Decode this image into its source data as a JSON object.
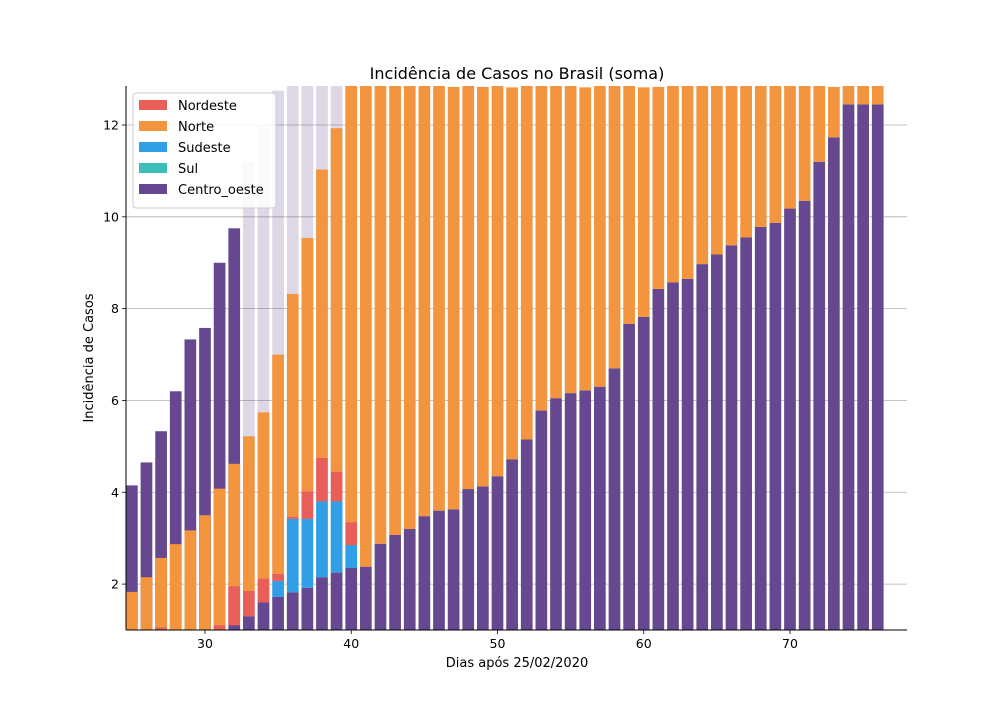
{
  "chart_data": {
    "type": "bar",
    "stacked": true,
    "title": "Incidência de Casos no Brasil (soma)",
    "xlabel": "Dias após 25/02/2020",
    "ylabel": "Incidência de Casos",
    "xlim": [
      24.6,
      78.0
    ],
    "ylim": [
      1.0,
      12.85
    ],
    "xticks": [
      30,
      40,
      50,
      60,
      70
    ],
    "yticks": [
      2,
      4,
      6,
      8,
      10,
      12
    ],
    "grid": "y",
    "legend_position": "upper-left",
    "x": [
      25,
      26,
      27,
      28,
      29,
      30,
      31,
      32,
      33,
      34,
      35,
      36,
      37,
      38,
      39,
      40,
      41,
      42,
      43,
      44,
      45,
      46,
      47,
      48,
      49,
      50,
      51,
      52,
      53,
      54,
      55,
      56,
      57,
      58,
      59,
      60,
      61,
      62,
      63,
      64,
      65,
      66,
      67,
      68,
      69,
      70,
      71,
      72,
      73,
      74,
      75,
      76
    ],
    "series": [
      {
        "name": "Centro_oeste",
        "color": "#65488f",
        "values": [
          0,
          0,
          0,
          0,
          0,
          0,
          0,
          1.1,
          1.3,
          1.6,
          1.72,
          1.82,
          1.92,
          2.15,
          2.25,
          2.35,
          2.38,
          2.88,
          3.07,
          3.2,
          3.48,
          3.6,
          3.63,
          4.07,
          4.13,
          4.35,
          4.72,
          5.15,
          5.78,
          6.05,
          6.16,
          6.22,
          6.3,
          6.7,
          7.67,
          7.82,
          8.43,
          8.57,
          8.65,
          8.97,
          9.18,
          9.38,
          9.55,
          9.78,
          9.87,
          10.18,
          10.35,
          11.2,
          11.73,
          12.45,
          12.45,
          12.45
        ]
      },
      {
        "name": "Sul",
        "color": "#3bbdb8",
        "values": [
          0,
          0,
          0,
          0,
          0,
          0,
          0,
          0,
          0,
          0,
          0,
          0,
          0,
          0,
          0,
          0,
          0,
          0,
          0,
          0,
          0,
          0,
          0,
          0,
          0,
          0,
          0,
          0,
          0,
          0,
          0,
          0,
          0,
          0,
          0,
          0,
          0,
          0,
          0,
          0,
          0,
          0,
          0,
          0,
          0,
          0,
          0,
          0,
          0,
          0,
          0,
          0
        ]
      },
      {
        "name": "Sudeste",
        "color": "#319fe6",
        "values": [
          0,
          0,
          0,
          0,
          0,
          0,
          0,
          0,
          0,
          0,
          0.35,
          1.6,
          1.5,
          1.65,
          1.55,
          0.5,
          0,
          0,
          0,
          0,
          0,
          0,
          0,
          0,
          0,
          0,
          0,
          0,
          0,
          0,
          0,
          0,
          0,
          0,
          0,
          0,
          0,
          0,
          0,
          0,
          0,
          0,
          0,
          0,
          0,
          0,
          0,
          0,
          0,
          0,
          0,
          0
        ]
      },
      {
        "name": "Nordeste",
        "color": "#ea5e5a",
        "values": [
          0,
          0.75,
          1.05,
          0.7,
          1.0,
          0.97,
          1.1,
          0.85,
          0.55,
          0.52,
          0.15,
          0.05,
          0.6,
          0.95,
          0.65,
          0.5,
          0,
          0,
          0,
          0,
          0,
          0,
          0,
          0,
          0,
          0,
          0,
          0,
          0,
          0,
          0,
          0,
          0,
          0,
          0,
          0,
          0,
          0,
          0,
          0,
          0,
          0,
          0,
          0,
          0,
          0,
          0,
          0,
          0,
          0,
          0,
          0
        ]
      },
      {
        "name": "Norte",
        "color": "#f3953e",
        "values": [
          1.83,
          1.4,
          1.52,
          2.17,
          2.17,
          2.53,
          2.98,
          2.67,
          3.37,
          3.62,
          4.78,
          4.85,
          5.52,
          6.28,
          7.48,
          10.05,
          10.5,
          10.0,
          9.8,
          9.7,
          9.4,
          9.3,
          9.2,
          8.8,
          8.7,
          8.5,
          8.1,
          7.7,
          7.1,
          6.8,
          6.7,
          6.6,
          6.6,
          6.2,
          5.2,
          5.0,
          4.4,
          4.3,
          4.2,
          3.9,
          3.7,
          3.5,
          3.3,
          3.1,
          3.0,
          2.7,
          2.5,
          1.65,
          1.1,
          0.4,
          0.4,
          0.4
        ]
      }
    ],
    "legend_order": [
      "Nordeste",
      "Norte",
      "Sudeste",
      "Sul",
      "Centro_oeste"
    ],
    "overlay": {
      "name": "Centro_oeste",
      "color": "#65488f",
      "values": [
        4.15,
        4.65,
        5.33,
        6.2,
        7.33,
        7.58,
        9.0,
        9.75,
        11.2,
        11.95,
        12.75,
        13.0,
        13.0,
        13.0,
        13.0,
        13.0
      ],
      "faded_from_index": 8
    }
  }
}
